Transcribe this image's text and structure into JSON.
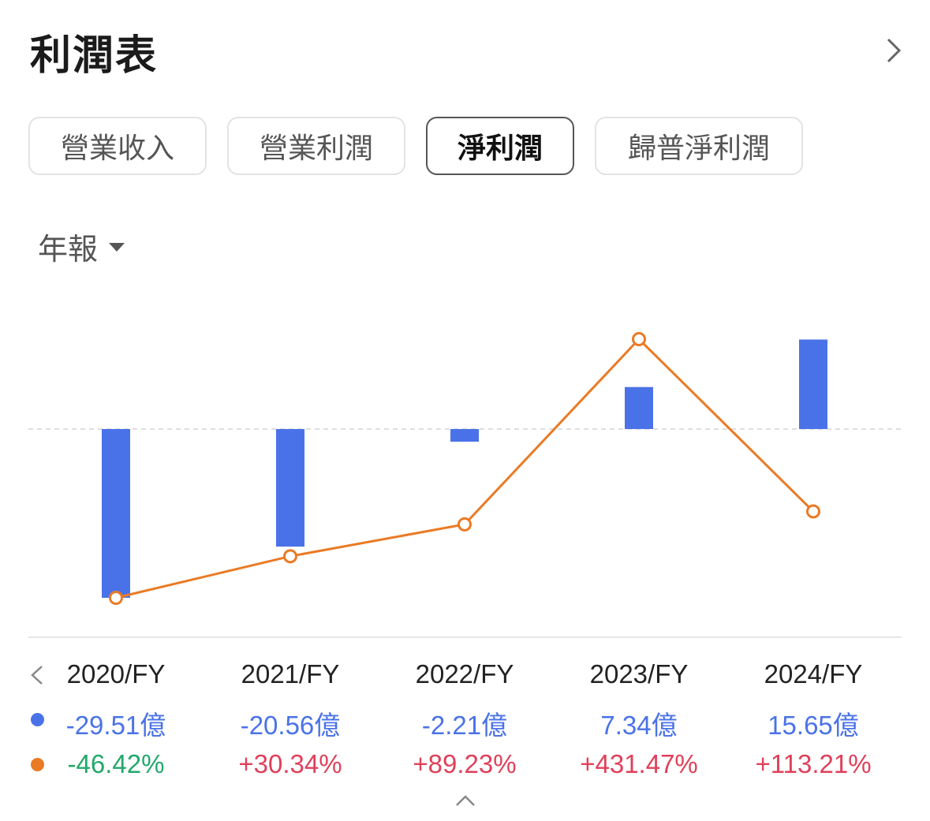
{
  "header": {
    "title": "利潤表"
  },
  "tabs": [
    {
      "label": "營業收入",
      "active": false
    },
    {
      "label": "營業利潤",
      "active": false
    },
    {
      "label": "淨利潤",
      "active": true
    },
    {
      "label": "歸普淨利潤",
      "active": false
    }
  ],
  "period_selector": {
    "label": "年報"
  },
  "colors": {
    "bar": "#4a72e8",
    "line": "#ea7a24",
    "positive": "#e0405a",
    "negative": "#22a86b"
  },
  "chart_data": {
    "type": "bar",
    "categories": [
      "2020/FY",
      "2021/FY",
      "2022/FY",
      "2023/FY",
      "2024/FY"
    ],
    "series": [
      {
        "type": "bar",
        "values": [
          -29.51,
          -20.56,
          -2.21,
          7.34,
          15.65
        ],
        "labels": [
          "-29.51億",
          "-20.56億",
          "-2.21億",
          "7.34億",
          "15.65億"
        ]
      },
      {
        "type": "line",
        "values": [
          -46.42,
          30.34,
          89.23,
          431.47,
          113.21
        ],
        "labels": [
          "-46.42%",
          "+30.34%",
          "+89.23%",
          "+431.47%",
          "+113.21%"
        ]
      }
    ],
    "zero_line": "dashed"
  }
}
